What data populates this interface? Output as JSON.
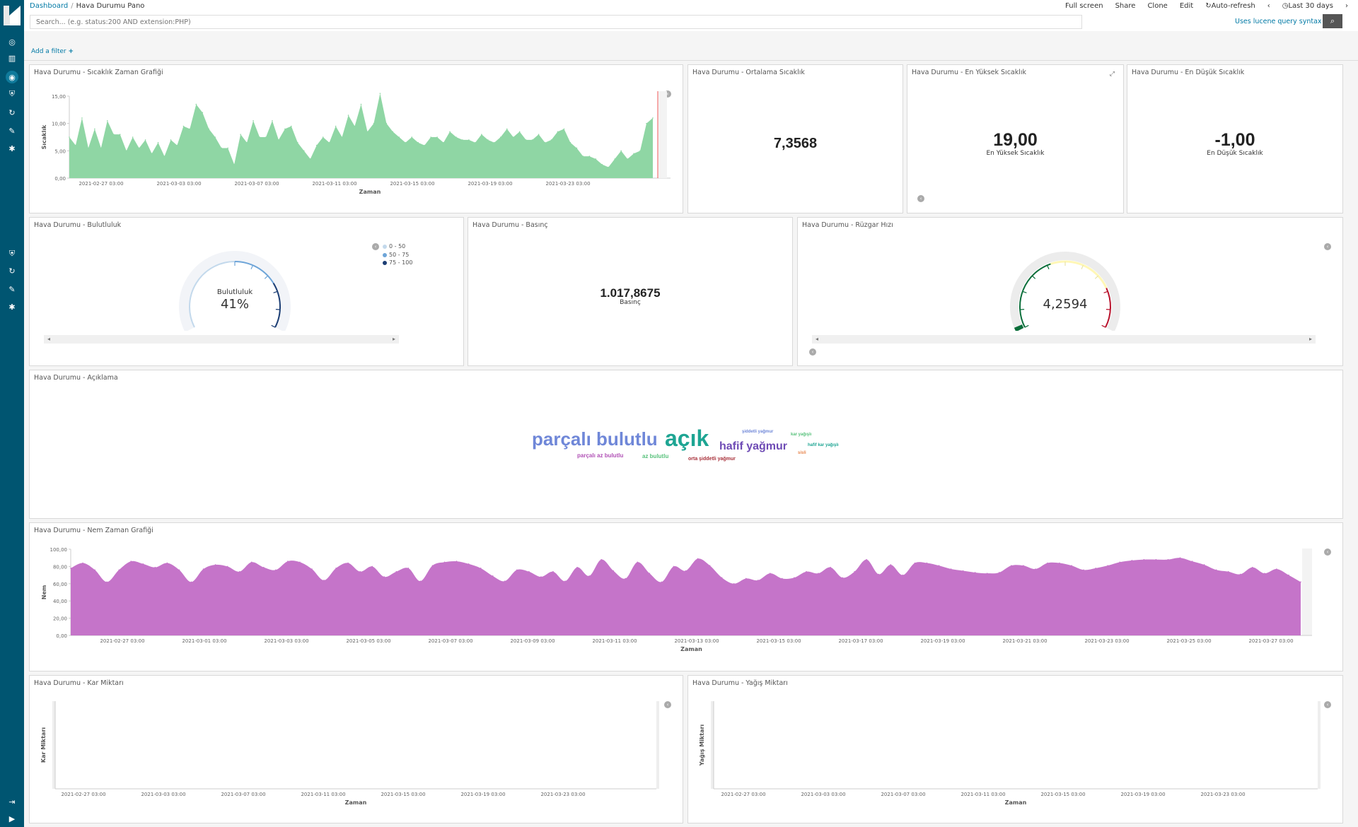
{
  "breadcrumb": {
    "root": "Dashboard",
    "current": "Hava Durumu Pano"
  },
  "topmenu": {
    "fullscreen": "Full screen",
    "share": "Share",
    "clone": "Clone",
    "edit": "Edit",
    "autorefresh": "Auto-refresh",
    "timerange": "Last 30 days"
  },
  "query": {
    "placeholder": "Search... (e.g. status:200 AND extension:PHP)",
    "lucene": "Uses lucene query syntax"
  },
  "filter": {
    "add": "Add a filter"
  },
  "panels": {
    "temp_chart": {
      "title": "Hava Durumu - Sıcaklık Zaman Grafiği",
      "ylabel": "Sıcaklık",
      "xlabel": "Zaman"
    },
    "avg_temp": {
      "title": "Hava Durumu - Ortalama Sıcaklık",
      "value": "7,3568"
    },
    "max_temp": {
      "title": "Hava Durumu - En Yüksek Sıcaklık",
      "value": "19,00",
      "label": "En Yüksek Sıcaklık"
    },
    "min_temp": {
      "title": "Hava Durumu - En Düşük Sıcaklık",
      "value": "-1,00",
      "label": "En Düşük Sıcaklık"
    },
    "cloud": {
      "title": "Hava Durumu - Bulutluluk",
      "label": "Bulutluluk",
      "value": "41%",
      "legend": [
        "0 - 50",
        "50 - 75",
        "75 - 100"
      ]
    },
    "pressure": {
      "title": "Hava Durumu - Basınç",
      "value": "1.017,8675",
      "label": "Basınç"
    },
    "wind": {
      "title": "Hava Durumu - Rüzgar Hızı",
      "value": "4,2594"
    },
    "desc": {
      "title": "Hava Durumu - Açıklama"
    },
    "humidity": {
      "title": "Hava Durumu - Nem Zaman Grafiği",
      "ylabel": "Nem",
      "xlabel": "Zaman"
    },
    "snow": {
      "title": "Hava Durumu - Kar Miktarı",
      "ylabel": "Kar Miktarı",
      "xlabel": "Zaman"
    },
    "rain": {
      "title": "Hava Durumu - Yağış Miktarı",
      "ylabel": "Yağış Miktarı",
      "xlabel": "Zaman"
    }
  },
  "wordcloud": [
    {
      "text": "parçalı bulutlu",
      "color": "#6f87d8"
    },
    {
      "text": "açık",
      "color": "#1ea593"
    },
    {
      "text": "hafif yağmur",
      "color": "#6e4bb5"
    },
    {
      "text": "parçalı az bulutlu",
      "color": "#b04fb5"
    },
    {
      "text": "az bulutlu",
      "color": "#57c17b"
    },
    {
      "text": "orta şiddetli yağmur",
      "color": "#a8303a"
    },
    {
      "text": "şiddetli yağmur",
      "color": "#6f87d8"
    },
    {
      "text": "kar yağışlı",
      "color": "#57c17b"
    },
    {
      "text": "hafif kar yağışlı",
      "color": "#1ea593"
    },
    {
      "text": "sisli",
      "color": "#e7864e"
    }
  ],
  "chart_data": [
    {
      "type": "area",
      "title": "Hava Durumu - Sıcaklık Zaman Grafiği",
      "xlabel": "Zaman",
      "ylabel": "Sıcaklık",
      "ylim": [
        0,
        15
      ],
      "yticks": [
        "15,00",
        "10,00",
        "5,00",
        "0,00"
      ],
      "xticks": [
        "2021-02-27 03:00",
        "2021-03-03 03:00",
        "2021-03-07 03:00",
        "2021-03-11 03:00",
        "2021-03-15 03:00",
        "2021-03-19 03:00",
        "2021-03-23 03:00"
      ],
      "color": "#8fd6a4",
      "values": [
        7.5,
        6,
        11,
        5.5,
        9,
        5.5,
        10.5,
        8,
        8,
        5,
        7.5,
        5.5,
        7,
        4.5,
        6.5,
        4,
        7,
        6,
        9.5,
        9,
        13.5,
        12,
        9,
        7.5,
        5.5,
        5.5,
        2.5,
        8,
        6.5,
        10.5,
        7.5,
        7.5,
        10.5,
        7,
        9,
        9.5,
        6.5,
        5,
        3.5,
        6,
        7.5,
        6.5,
        9.5,
        7.5,
        11.5,
        9.5,
        13.5,
        8.5,
        10,
        15.5,
        10,
        8.5,
        7.5,
        6.5,
        7.5,
        6.5,
        6,
        7.5,
        7.5,
        6.5,
        8.5,
        7.5,
        7,
        7,
        6.5,
        8,
        7,
        6.5,
        7.5,
        9,
        7.5,
        8.5,
        7,
        7,
        8,
        6.5,
        7,
        8.5,
        9,
        6.5,
        5.5,
        4,
        4,
        3.5,
        2.5,
        2,
        3.5,
        5,
        3.5,
        4.5,
        5,
        10,
        11
      ]
    },
    {
      "type": "area",
      "title": "Hava Durumu - Nem Zaman Grafiği",
      "xlabel": "Zaman",
      "ylabel": "Nem",
      "ylim": [
        0,
        100
      ],
      "yticks": [
        "100,00",
        "80,00",
        "60,00",
        "40,00",
        "20,00",
        "0,00"
      ],
      "xticks": [
        "2021-02-27 03:00",
        "2021-03-01 03:00",
        "2021-03-03 03:00",
        "2021-03-05 03:00",
        "2021-03-07 03:00",
        "2021-03-09 03:00",
        "2021-03-11 03:00",
        "2021-03-13 03:00",
        "2021-03-15 03:00",
        "2021-03-17 03:00",
        "2021-03-19 03:00",
        "2021-03-21 03:00",
        "2021-03-23 03:00",
        "2021-03-25 03:00",
        "2021-03-27 03:00"
      ],
      "color": "#c574c9",
      "values": [
        78,
        84,
        76,
        62,
        76,
        86,
        83,
        79,
        84,
        76,
        62,
        77,
        82,
        80,
        74,
        85,
        79,
        76,
        86,
        85,
        77,
        64,
        78,
        84,
        74,
        80,
        68,
        74,
        78,
        63,
        81,
        85,
        86,
        83,
        78,
        69,
        63,
        76,
        74,
        68,
        74,
        63,
        79,
        69,
        88,
        75,
        66,
        85,
        72,
        62,
        80,
        75,
        89,
        81,
        67,
        60,
        66,
        64,
        72,
        66,
        67,
        74,
        72,
        79,
        67,
        74,
        88,
        71,
        82,
        70,
        84,
        84,
        81,
        77,
        75,
        73,
        72,
        73,
        81,
        81,
        77,
        84,
        84,
        81,
        76,
        78,
        81,
        85,
        87,
        88,
        88,
        88,
        90,
        86,
        82,
        76,
        74,
        71,
        79,
        72,
        77,
        70,
        62
      ]
    },
    {
      "type": "area",
      "title": "Hava Durumu - Kar Miktarı",
      "xlabel": "Zaman",
      "ylabel": "Kar Miktarı",
      "xticks": [
        "2021-02-27 03:00",
        "2021-03-03 03:00",
        "2021-03-07 03:00",
        "2021-03-11 03:00",
        "2021-03-15 03:00",
        "2021-03-19 03:00",
        "2021-03-23 03:00"
      ],
      "values": []
    },
    {
      "type": "area",
      "title": "Hava Durumu - Yağış Miktarı",
      "xlabel": "Zaman",
      "ylabel": "Yağış Miktarı",
      "xticks": [
        "2021-02-27 03:00",
        "2021-03-03 03:00",
        "2021-03-07 03:00",
        "2021-03-11 03:00",
        "2021-03-15 03:00",
        "2021-03-19 03:00",
        "2021-03-23 03:00"
      ],
      "values": []
    }
  ],
  "gauges": {
    "cloud": {
      "value": 41,
      "min": 0,
      "max": 100,
      "colors": [
        "#c3d9ec",
        "#6ea5d8",
        "#1c3e74"
      ]
    },
    "wind": {
      "value": 4.2594,
      "colors": [
        "#0b6e3a",
        "#fff7b6",
        "#b8102a"
      ]
    }
  }
}
